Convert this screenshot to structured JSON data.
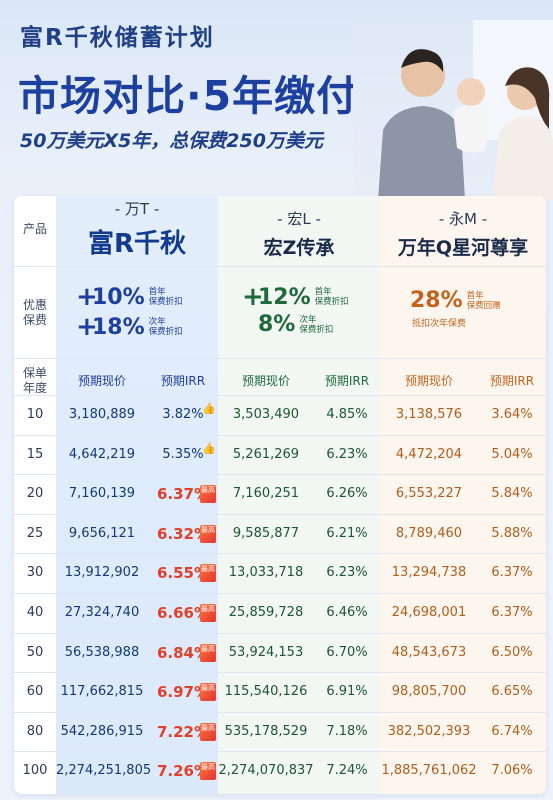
{
  "header": {
    "title_small": "富R千秋储蓄计划",
    "title_big": "市场对比·5年缴付",
    "subtitle": "50万美元X5年，总保费250万美元"
  },
  "row_labels": {
    "product": "产品",
    "discount": "优惠\n保费",
    "policy_year": "保单\n年度"
  },
  "products": [
    {
      "code": "- 万T -",
      "name": "富R千秋"
    },
    {
      "code": "- 宏L -",
      "name": "宏Z传承"
    },
    {
      "code": "- 永M -",
      "name": "万年Q星河尊享"
    }
  ],
  "discounts": {
    "a": [
      {
        "plus": "+",
        "pct": "10%",
        "note1": "首年",
        "note2": "保费折扣"
      },
      {
        "plus": "+",
        "pct": "18%",
        "note1": "次年",
        "note2": "保费折扣"
      }
    ],
    "b": [
      {
        "plus": "+",
        "pct": "12%",
        "note1": "首年",
        "note2": "保费折扣"
      },
      {
        "plus": "",
        "pct": "8%",
        "note1": "次年",
        "note2": "保费折扣"
      }
    ],
    "c": {
      "pct": "28%",
      "note1": "首年",
      "note2": "保费回赠",
      "sub": "抵扣次年保费"
    }
  },
  "subheaders": {
    "pv": "预期现价",
    "irr": "预期IRR"
  },
  "badge_text": "最高",
  "icons": {
    "thumb": "thumbs-up-icon",
    "badge": "highest-badge-icon"
  },
  "rows": [
    {
      "year": "10",
      "a_pv": "3,180,889",
      "a_irr": "3.82%",
      "b_pv": "3,503,490",
      "b_irr": "4.85%",
      "c_pv": "3,138,576",
      "c_irr": "3.64%",
      "mark": "thumb"
    },
    {
      "year": "15",
      "a_pv": "4,642,219",
      "a_irr": "5.35%",
      "b_pv": "5,261,269",
      "b_irr": "6.23%",
      "c_pv": "4,472,204",
      "c_irr": "5.04%",
      "mark": "thumb"
    },
    {
      "year": "20",
      "a_pv": "7,160,139",
      "a_irr": "6.37%",
      "b_pv": "7,160,251",
      "b_irr": "6.26%",
      "c_pv": "6,553,227",
      "c_irr": "5.84%",
      "mark": "badge"
    },
    {
      "year": "25",
      "a_pv": "9,656,121",
      "a_irr": "6.32%",
      "b_pv": "9,585,877",
      "b_irr": "6.21%",
      "c_pv": "8,789,460",
      "c_irr": "5.88%",
      "mark": "badge"
    },
    {
      "year": "30",
      "a_pv": "13,912,902",
      "a_irr": "6.55%",
      "b_pv": "13,033,718",
      "b_irr": "6.23%",
      "c_pv": "13,294,738",
      "c_irr": "6.37%",
      "mark": "badge"
    },
    {
      "year": "40",
      "a_pv": "27,324,740",
      "a_irr": "6.66%",
      "b_pv": "25,859,728",
      "b_irr": "6.46%",
      "c_pv": "24,698,001",
      "c_irr": "6.37%",
      "mark": "badge"
    },
    {
      "year": "50",
      "a_pv": "56,538,988",
      "a_irr": "6.84%",
      "b_pv": "53,924,153",
      "b_irr": "6.70%",
      "c_pv": "48,543,673",
      "c_irr": "6.50%",
      "mark": "badge"
    },
    {
      "year": "60",
      "a_pv": "117,662,815",
      "a_irr": "6.97%",
      "b_pv": "115,540,126",
      "b_irr": "6.91%",
      "c_pv": "98,805,700",
      "c_irr": "6.65%",
      "mark": "badge"
    },
    {
      "year": "80",
      "a_pv": "542,286,915",
      "a_irr": "7.22%",
      "b_pv": "535,178,529",
      "b_irr": "7.18%",
      "c_pv": "382,502,393",
      "c_irr": "6.74%",
      "mark": "badge"
    },
    {
      "year": "100",
      "a_pv": "2,274,251,805",
      "a_irr": "7.26%",
      "b_pv": "2,274,070,837",
      "b_irr": "7.24%",
      "c_pv": "1,885,761,062",
      "c_irr": "7.06%",
      "mark": "badge"
    }
  ]
}
